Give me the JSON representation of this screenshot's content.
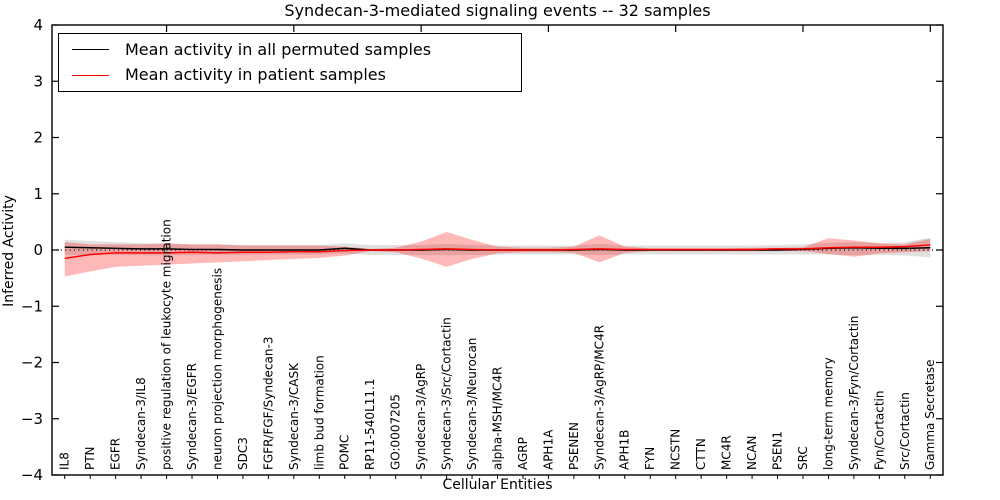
{
  "chart_data": {
    "type": "line",
    "title": "Syndecan-3-mediated signaling events -- 32 samples",
    "xlabel": "Cellular Entities",
    "ylabel": "Inferred Activity",
    "ylim": [
      -4,
      4
    ],
    "yticks": [
      4,
      3,
      2,
      1,
      0,
      -1,
      -2,
      -3,
      -4
    ],
    "grid": false,
    "zero_reference_line": 0,
    "legend_position": "upper left",
    "frame_color": "#000000",
    "categories": [
      "IL8",
      "PTN",
      "EGFR",
      "Syndecan-3/IL8",
      "positive regulation of leukocyte migration",
      "Syndecan-3/EGFR",
      "neuron projection morphogenesis",
      "SDC3",
      "FGFR/FGF/Syndecan-3",
      "Syndecan-3/CASK",
      "limb bud formation",
      "POMC",
      "RP11-540L11.1",
      "GO:0007205",
      "Syndecan-3/AgRP",
      "Syndecan-3/Src/Cortactin",
      "Syndecan-3/Neurocan",
      "alpha-MSH/MC4R",
      "AGRP",
      "APH1A",
      "PSENEN",
      "Syndecan-3/AgRP/MC4R",
      "APH1B",
      "FYN",
      "NCSTN",
      "CTTN",
      "MC4R",
      "NCAN",
      "PSEN1",
      "SRC",
      "long-term memory",
      "Syndecan-3/Fyn/Cortactin",
      "Fyn/Cortactin",
      "Src/Cortactin",
      "Gamma Secretase"
    ],
    "series": [
      {
        "name": "Mean activity in all permuted samples",
        "color": "#000000",
        "band_color": "#999999",
        "band_opacity": 0.3,
        "values": [
          0.05,
          0.04,
          0.03,
          0.02,
          0.02,
          0.01,
          0.01,
          0.0,
          0.0,
          0.0,
          0.0,
          0.03,
          0.0,
          0.0,
          0.0,
          0.01,
          0.0,
          0.0,
          0.0,
          0.0,
          0.0,
          0.01,
          0.0,
          0.0,
          0.0,
          0.0,
          0.0,
          0.0,
          0.0,
          0.01,
          0.03,
          0.04,
          0.03,
          0.03,
          0.04
        ],
        "band_upper": [
          0.18,
          0.16,
          0.14,
          0.12,
          0.11,
          0.1,
          0.1,
          0.09,
          0.09,
          0.09,
          0.09,
          0.12,
          0.09,
          0.09,
          0.09,
          0.11,
          0.09,
          0.08,
          0.08,
          0.08,
          0.08,
          0.11,
          0.08,
          0.08,
          0.08,
          0.08,
          0.08,
          0.08,
          0.09,
          0.1,
          0.13,
          0.14,
          0.12,
          0.14,
          0.22
        ],
        "band_lower": [
          -0.09,
          -0.09,
          -0.09,
          -0.09,
          -0.09,
          -0.09,
          -0.08,
          -0.09,
          -0.08,
          -0.08,
          -0.08,
          -0.06,
          -0.09,
          -0.09,
          -0.09,
          -0.09,
          -0.09,
          -0.08,
          -0.08,
          -0.08,
          -0.08,
          -0.09,
          -0.08,
          -0.08,
          -0.08,
          -0.08,
          -0.08,
          -0.08,
          -0.08,
          -0.08,
          -0.08,
          -0.09,
          -0.09,
          -0.1,
          -0.13
        ]
      },
      {
        "name": "Mean activity in patient samples",
        "color": "#ff0000",
        "band_color": "#ff0000",
        "band_opacity": 0.28,
        "values": [
          -0.15,
          -0.08,
          -0.05,
          -0.05,
          -0.05,
          -0.04,
          -0.05,
          -0.04,
          -0.04,
          -0.03,
          -0.03,
          -0.01,
          0.0,
          0.0,
          0.01,
          0.02,
          0.01,
          0.0,
          0.0,
          0.0,
          0.01,
          0.02,
          0.01,
          0.01,
          0.01,
          0.01,
          0.01,
          0.01,
          0.02,
          0.02,
          0.04,
          0.05,
          0.05,
          0.06,
          0.09
        ],
        "band_upper": [
          0.14,
          0.1,
          0.1,
          0.1,
          0.12,
          0.1,
          0.1,
          0.08,
          0.08,
          0.08,
          0.08,
          0.06,
          0.02,
          0.04,
          0.15,
          0.32,
          0.18,
          0.06,
          0.04,
          0.04,
          0.06,
          0.26,
          0.06,
          0.03,
          0.03,
          0.03,
          0.03,
          0.04,
          0.04,
          0.05,
          0.21,
          0.17,
          0.12,
          0.1,
          0.2
        ],
        "band_lower": [
          -0.47,
          -0.38,
          -0.3,
          -0.28,
          -0.26,
          -0.24,
          -0.22,
          -0.2,
          -0.18,
          -0.16,
          -0.14,
          -0.1,
          -0.02,
          -0.04,
          -0.15,
          -0.3,
          -0.16,
          -0.06,
          -0.04,
          -0.04,
          -0.05,
          -0.22,
          -0.05,
          -0.02,
          -0.02,
          -0.02,
          -0.02,
          -0.02,
          -0.02,
          -0.02,
          -0.07,
          -0.12,
          -0.06,
          -0.04,
          -0.02
        ]
      }
    ]
  },
  "legend": {
    "items": [
      {
        "label": "Mean activity in all permuted samples",
        "color": "#000000"
      },
      {
        "label": "Mean activity in patient samples",
        "color": "#ff0000"
      }
    ]
  }
}
